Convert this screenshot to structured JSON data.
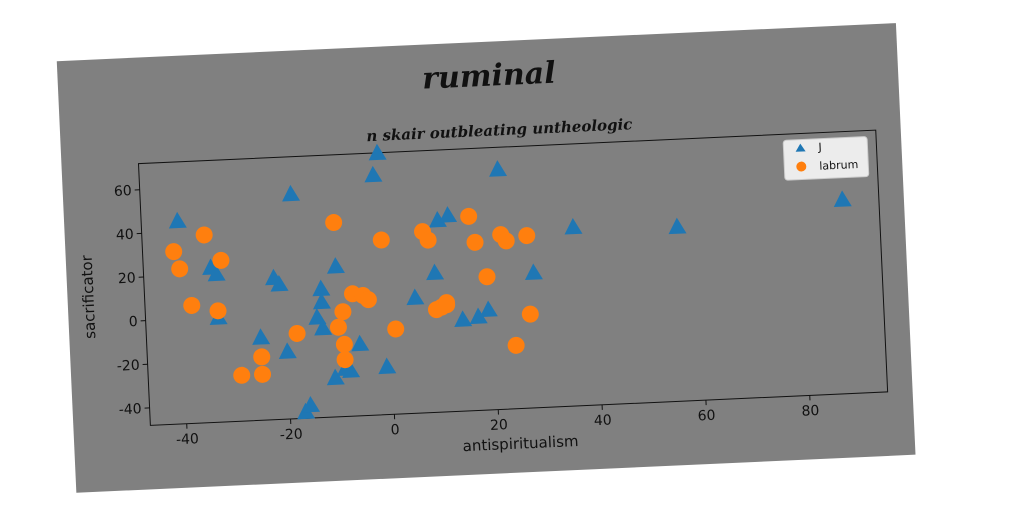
{
  "chart_data": {
    "type": "scatter",
    "title": "ruminal",
    "subtitle": "n skair outbleating untheologic",
    "xlabel": "antispiritualism",
    "ylabel": "sacrificator",
    "xlim": [
      -47,
      95
    ],
    "ylim": [
      -48,
      72
    ],
    "xticks": [
      "-40",
      "-20",
      "0",
      "20",
      "40",
      "60",
      "80"
    ],
    "yticks": [
      "-40",
      "-20",
      "0",
      "20",
      "40",
      "60"
    ],
    "xtick_values": [
      -40,
      -20,
      0,
      20,
      40,
      60,
      80
    ],
    "ytick_values": [
      -40,
      -20,
      0,
      20,
      40,
      60
    ],
    "grid": false,
    "legend_position": "top-right",
    "background": "#808080",
    "series": [
      {
        "name": "J",
        "marker": "triangle",
        "color": "#1f77b4",
        "points": [
          [
            -40,
            45
          ],
          [
            -34,
            23
          ],
          [
            -33,
            20
          ],
          [
            -33,
            0
          ],
          [
            -18,
            55
          ],
          [
            -22,
            17
          ],
          [
            -21,
            14
          ],
          [
            -25,
            -10
          ],
          [
            -20,
            -17
          ],
          [
            -17,
            -45
          ],
          [
            -16,
            -42
          ],
          [
            -13,
            11
          ],
          [
            -13,
            5
          ],
          [
            -14,
            -2
          ],
          [
            -13,
            -7
          ],
          [
            -11,
            -30
          ],
          [
            -9,
            -26
          ],
          [
            -8,
            -27
          ],
          [
            -10,
            21
          ],
          [
            -6,
            -15
          ],
          [
            -2,
            62
          ],
          [
            -1,
            72
          ],
          [
            -1,
            -26
          ],
          [
            5,
            5
          ],
          [
            9,
            16
          ],
          [
            10,
            40
          ],
          [
            12,
            42
          ],
          [
            14,
            -6
          ],
          [
            17,
            -5
          ],
          [
            19,
            -2
          ],
          [
            22,
            62
          ],
          [
            28,
            14
          ],
          [
            36,
            34
          ],
          [
            56,
            32
          ],
          [
            88,
            41
          ]
        ]
      },
      {
        "name": "labrum",
        "marker": "circle",
        "color": "#ff7f0e",
        "points": [
          [
            -41,
            31
          ],
          [
            -40,
            23
          ],
          [
            -38,
            6
          ],
          [
            -35,
            38
          ],
          [
            -33,
            3
          ],
          [
            -32,
            26
          ],
          [
            -29,
            -27
          ],
          [
            -25,
            -19
          ],
          [
            -25,
            -27
          ],
          [
            -18,
            -9
          ],
          [
            -10,
            41
          ],
          [
            -9,
            0
          ],
          [
            -10,
            -7
          ],
          [
            -9,
            -15
          ],
          [
            -9,
            -22
          ],
          [
            -7,
            8
          ],
          [
            -5,
            7
          ],
          [
            -4,
            5
          ],
          [
            -1,
            32
          ],
          [
            1,
            -9
          ],
          [
            7,
            35
          ],
          [
            8,
            31
          ],
          [
            9,
            -1
          ],
          [
            10,
            0
          ],
          [
            11,
            2
          ],
          [
            11,
            1
          ],
          [
            16,
            41
          ],
          [
            17,
            29
          ],
          [
            19,
            13
          ],
          [
            22,
            32
          ],
          [
            23,
            29
          ],
          [
            24,
            -19
          ],
          [
            27,
            -5
          ],
          [
            27,
            31
          ]
        ]
      }
    ]
  }
}
